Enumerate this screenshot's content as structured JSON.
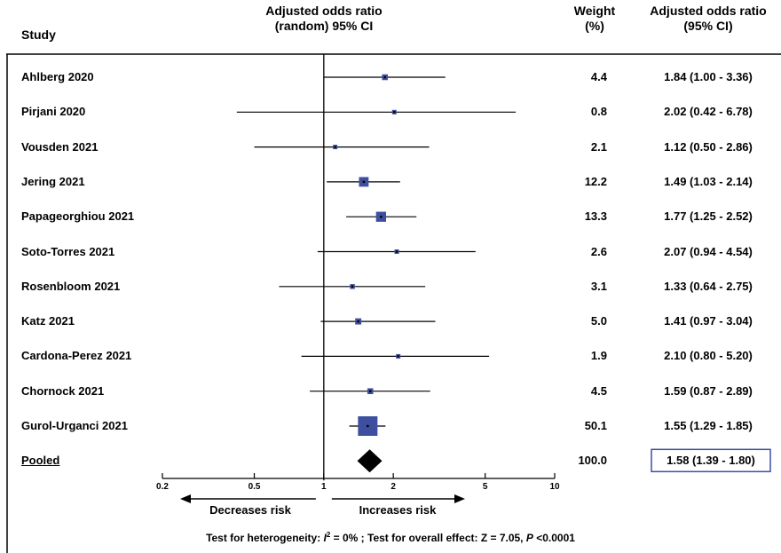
{
  "header": {
    "study": "Study",
    "aor_line1": "Adjusted odds ratio",
    "aor_line2": "(random) 95% CI",
    "weight_line1": "Weight",
    "weight_line2": "(%)",
    "ci_line1": "Adjusted odds ratio",
    "ci_line2": "(95% CI)"
  },
  "chart_data": {
    "type": "forest",
    "x_scale": "log",
    "xlim": [
      0.2,
      10
    ],
    "x_ticks": [
      "0.2",
      "0.5",
      "1",
      "2",
      "5",
      "10"
    ],
    "null_line": 1,
    "studies": [
      {
        "name": "Ahlberg 2020",
        "or": 1.84,
        "lo": 1.0,
        "hi": 3.36,
        "weight": "4.4",
        "ci_text": "1.84 (1.00 - 3.36)"
      },
      {
        "name": "Pirjani 2020",
        "or": 2.02,
        "lo": 0.42,
        "hi": 6.78,
        "weight": "0.8",
        "ci_text": "2.02 (0.42 - 6.78)"
      },
      {
        "name": "Vousden 2021",
        "or": 1.12,
        "lo": 0.5,
        "hi": 2.86,
        "weight": "2.1",
        "ci_text": "1.12 (0.50 - 2.86)"
      },
      {
        "name": "Jering 2021",
        "or": 1.49,
        "lo": 1.03,
        "hi": 2.14,
        "weight": "12.2",
        "ci_text": "1.49 (1.03 - 2.14)"
      },
      {
        "name": "Papageorghiou 2021",
        "or": 1.77,
        "lo": 1.25,
        "hi": 2.52,
        "weight": "13.3",
        "ci_text": "1.77 (1.25 - 2.52)"
      },
      {
        "name": "Soto-Torres 2021",
        "or": 2.07,
        "lo": 0.94,
        "hi": 4.54,
        "weight": "2.6",
        "ci_text": "2.07 (0.94 - 4.54)"
      },
      {
        "name": "Rosenbloom 2021",
        "or": 1.33,
        "lo": 0.64,
        "hi": 2.75,
        "weight": "3.1",
        "ci_text": "1.33 (0.64 - 2.75)"
      },
      {
        "name": "Katz 2021",
        "or": 1.41,
        "lo": 0.97,
        "hi": 3.04,
        "weight": "5.0",
        "ci_text": "1.41 (0.97 - 3.04)"
      },
      {
        "name": "Cardona-Perez 2021",
        "or": 2.1,
        "lo": 0.8,
        "hi": 5.2,
        "weight": "1.9",
        "ci_text": "2.10 (0.80 - 5.20)"
      },
      {
        "name": "Chornock 2021",
        "or": 1.59,
        "lo": 0.87,
        "hi": 2.89,
        "weight": "4.5",
        "ci_text": "1.59 (0.87 - 2.89)"
      },
      {
        "name": "Gurol-Urganci 2021",
        "or": 1.55,
        "lo": 1.29,
        "hi": 1.85,
        "weight": "50.1",
        "ci_text": "1.55 (1.29 - 1.85)"
      }
    ],
    "pooled": {
      "name": "Pooled",
      "or": 1.58,
      "lo": 1.39,
      "hi": 1.8,
      "weight": "100.0",
      "ci_text": "1.58 (1.39 - 1.80)"
    },
    "arrow_left_label": "Decreases risk",
    "arrow_right_label": "Increases risk",
    "footnote": {
      "part1": "Test for heterogeneity: ",
      "i_symbol": "I",
      "sup": "2",
      "part2": " = 0% ; Test for overall effect: Z = 7.05, ",
      "p_symbol": "P",
      "part3": " <0.0001"
    },
    "colors": {
      "square": "#3f4fa0",
      "pooled_box": "#3f4fa0",
      "diamond": "#000000"
    }
  }
}
